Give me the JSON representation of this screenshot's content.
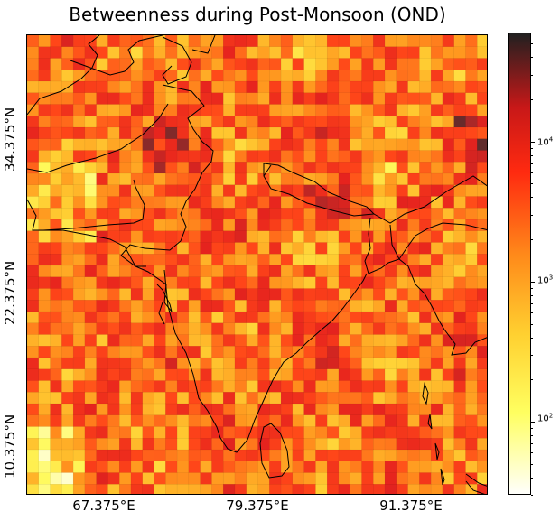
{
  "title": "Betweenness during Post-Monsoon (OND)",
  "axes": {
    "y_ticks": [
      "34.375°N",
      "22.375°N",
      "10.375°N"
    ],
    "x_ticks": [
      "67.375°E",
      "79.375°E",
      "91.375°E"
    ]
  },
  "colorbar": {
    "scale": "log",
    "range": [
      30,
      60000
    ],
    "colormap": "hot_r",
    "ticks": [
      {
        "base": "10",
        "exp": "2",
        "value": 100
      },
      {
        "base": "10",
        "exp": "3",
        "value": 1000
      },
      {
        "base": "10",
        "exp": "4",
        "value": 10000
      }
    ]
  },
  "chart_data": {
    "type": "heatmap",
    "title": "Betweenness during Post-Monsoon (OND)",
    "x_ticks_deg": [
      67.375,
      79.375,
      91.375
    ],
    "y_ticks_deg": [
      34.375,
      22.375,
      10.375
    ],
    "grid_cols": 40,
    "grid_rows": 40,
    "value_scale": "log",
    "value_range": [
      30,
      60000
    ]
  }
}
